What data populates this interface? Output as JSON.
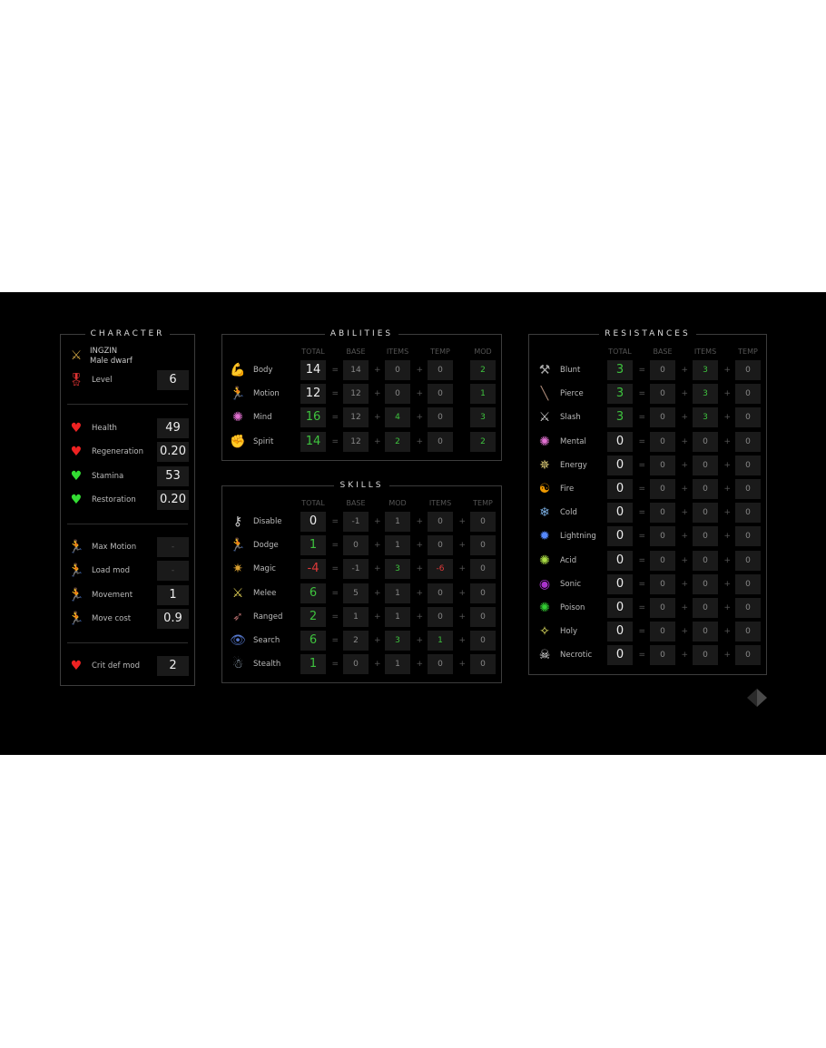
{
  "colors": {
    "green": "#3ec33e",
    "red": "#e03a3a",
    "panel_border": "#3c3c3c"
  },
  "character": {
    "title": "CHARACTER",
    "name": "INGZIN",
    "subtitle": "Male dwarf",
    "level": {
      "label": "Level",
      "value": "6",
      "icon": "medal-icon"
    },
    "groups": [
      [
        {
          "label": "Health",
          "value": "49",
          "icon": "red-heart-icon"
        },
        {
          "label": "Regeneration",
          "value": "0.20",
          "icon": "red-heart-icon"
        },
        {
          "label": "Stamina",
          "value": "53",
          "icon": "green-heart-icon"
        },
        {
          "label": "Restoration",
          "value": "0.20",
          "icon": "green-heart-icon"
        }
      ],
      [
        {
          "label": "Max Motion",
          "value": "-",
          "icon": "red-runner-icon"
        },
        {
          "label": "Load mod",
          "value": "-",
          "icon": "red-runner-icon"
        },
        {
          "label": "Movement",
          "value": "1",
          "icon": "yellow-runner-icon"
        },
        {
          "label": "Move cost",
          "value": "0.9",
          "icon": "yellow-runner-icon"
        }
      ],
      [
        {
          "label": "Crit def mod",
          "value": "2",
          "icon": "red-heart-icon"
        }
      ]
    ]
  },
  "abilities": {
    "title": "ABILITIES",
    "headers": [
      "TOTAL",
      "BASE",
      "ITEMS",
      "TEMP",
      "MOD"
    ],
    "rows": [
      {
        "label": "Body",
        "icon": "flexed-arm-icon",
        "total": "14",
        "base": "14",
        "items": "0",
        "temp": "0",
        "mod": "2"
      },
      {
        "label": "Motion",
        "icon": "runner-icon",
        "total": "12",
        "base": "12",
        "items": "0",
        "temp": "0",
        "mod": "1"
      },
      {
        "label": "Mind",
        "icon": "brain-icon",
        "total": "16",
        "base": "12",
        "items": "4",
        "temp": "0",
        "mod": "3"
      },
      {
        "label": "Spirit",
        "icon": "fist-icon",
        "total": "14",
        "base": "12",
        "items": "2",
        "temp": "0",
        "mod": "2"
      }
    ]
  },
  "skills": {
    "title": "SKILLS",
    "headers": [
      "TOTAL",
      "BASE",
      "MOD",
      "ITEMS",
      "TEMP"
    ],
    "rows": [
      {
        "label": "Disable",
        "icon": "lockpick-icon",
        "total": "0",
        "base": "-1",
        "mod": "1",
        "items": "0",
        "temp": "0"
      },
      {
        "label": "Dodge",
        "icon": "dodge-icon",
        "total": "1",
        "base": "0",
        "mod": "1",
        "items": "0",
        "temp": "0"
      },
      {
        "label": "Magic",
        "icon": "sparkle-icon",
        "total": "-4",
        "base": "-1",
        "mod": "3",
        "items": "-6",
        "temp": "0"
      },
      {
        "label": "Melee",
        "icon": "crossed-weapons-icon",
        "total": "6",
        "base": "5",
        "mod": "1",
        "items": "0",
        "temp": "0"
      },
      {
        "label": "Ranged",
        "icon": "bow-icon",
        "total": "2",
        "base": "1",
        "mod": "1",
        "items": "0",
        "temp": "0"
      },
      {
        "label": "Search",
        "icon": "eye-icon",
        "total": "6",
        "base": "2",
        "mod": "3",
        "items": "1",
        "temp": "0"
      },
      {
        "label": "Stealth",
        "icon": "stealth-icon",
        "total": "1",
        "base": "0",
        "mod": "1",
        "items": "0",
        "temp": "0"
      }
    ]
  },
  "resistances": {
    "title": "RESISTANCES",
    "headers": [
      "TOTAL",
      "BASE",
      "ITEMS",
      "TEMP"
    ],
    "rows": [
      {
        "label": "Blunt",
        "icon": "hammer-icon",
        "total": "3",
        "base": "0",
        "items": "3",
        "temp": "0"
      },
      {
        "label": "Pierce",
        "icon": "spear-icon",
        "total": "3",
        "base": "0",
        "items": "3",
        "temp": "0"
      },
      {
        "label": "Slash",
        "icon": "axe-icon",
        "total": "3",
        "base": "0",
        "items": "3",
        "temp": "0"
      },
      {
        "label": "Mental",
        "icon": "brain-icon",
        "total": "0",
        "base": "0",
        "items": "0",
        "temp": "0"
      },
      {
        "label": "Energy",
        "icon": "energy-icon",
        "total": "0",
        "base": "0",
        "items": "0",
        "temp": "0"
      },
      {
        "label": "Fire",
        "icon": "fire-icon",
        "total": "0",
        "base": "0",
        "items": "0",
        "temp": "0"
      },
      {
        "label": "Cold",
        "icon": "cold-icon",
        "total": "0",
        "base": "0",
        "items": "0",
        "temp": "0"
      },
      {
        "label": "Lightning",
        "icon": "lightning-icon",
        "total": "0",
        "base": "0",
        "items": "0",
        "temp": "0"
      },
      {
        "label": "Acid",
        "icon": "acid-icon",
        "total": "0",
        "base": "0",
        "items": "0",
        "temp": "0"
      },
      {
        "label": "Sonic",
        "icon": "sonic-icon",
        "total": "0",
        "base": "0",
        "items": "0",
        "temp": "0"
      },
      {
        "label": "Poison",
        "icon": "poison-icon",
        "total": "0",
        "base": "0",
        "items": "0",
        "temp": "0"
      },
      {
        "label": "Holy",
        "icon": "holy-icon",
        "total": "0",
        "base": "0",
        "items": "0",
        "temp": "0"
      },
      {
        "label": "Necrotic",
        "icon": "skull-icon",
        "total": "0",
        "base": "0",
        "items": "0",
        "temp": "0"
      }
    ]
  }
}
